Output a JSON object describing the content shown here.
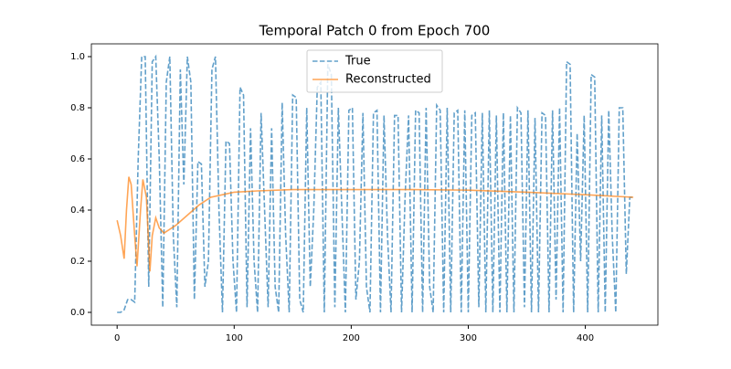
{
  "chart_data": {
    "type": "line",
    "title": "Temporal Patch 0 from Epoch 700",
    "xlim": [
      -22,
      462
    ],
    "ylim": [
      -0.05,
      1.05
    ],
    "xticks": [
      0,
      100,
      200,
      300,
      400
    ],
    "yticks": [
      {
        "value": 0,
        "label": "0.0"
      },
      0.2,
      0.4,
      0.6,
      0.8,
      {
        "value": 1,
        "label": "1.0"
      }
    ],
    "legend": "upper center",
    "grid": false,
    "series": [
      {
        "name": "True",
        "color": "#1f77b4",
        "dashed": true,
        "x": [
          0,
          3,
          6,
          9,
          12,
          15,
          18,
          21,
          24,
          27,
          30,
          33,
          36,
          39,
          42,
          45,
          48,
          51,
          54,
          57,
          60,
          63,
          66,
          69,
          72,
          75,
          78,
          81,
          84,
          87,
          90,
          93,
          96,
          99,
          102,
          105,
          108,
          111,
          114,
          117,
          120,
          123,
          126,
          129,
          132,
          135,
          138,
          141,
          144,
          147,
          150,
          153,
          156,
          159,
          162,
          165,
          168,
          171,
          174,
          177,
          180,
          183,
          186,
          189,
          192,
          195,
          198,
          201,
          204,
          207,
          210,
          213,
          216,
          219,
          222,
          225,
          228,
          231,
          234,
          237,
          240,
          243,
          246,
          249,
          252,
          255,
          258,
          261,
          264,
          267,
          270,
          273,
          276,
          279,
          282,
          285,
          288,
          291,
          294,
          297,
          300,
          303,
          306,
          309,
          312,
          315,
          318,
          321,
          324,
          327,
          330,
          333,
          336,
          339,
          342,
          345,
          348,
          351,
          354,
          357,
          360,
          363,
          366,
          369,
          372,
          375,
          378,
          381,
          384,
          387,
          390,
          393,
          396,
          399,
          402,
          405,
          408,
          411,
          414,
          417,
          420,
          423,
          426,
          429,
          432,
          435,
          438,
          441
        ],
        "values": [
          0,
          0,
          0.01,
          0.05,
          0.05,
          0.04,
          0.6,
          1.0,
          1.0,
          0.1,
          0.98,
          1.0,
          0.6,
          0.02,
          0.9,
          1.0,
          0.3,
          0.02,
          0.95,
          0.5,
          1.0,
          0.9,
          0.05,
          0.59,
          0.58,
          0.1,
          0.2,
          0.95,
          1.0,
          0.4,
          0.0,
          0.67,
          0.66,
          0.2,
          0.0,
          0.88,
          0.85,
          0.02,
          0.72,
          0.2,
          0.0,
          0.78,
          0.4,
          0.02,
          0.72,
          0.1,
          0.0,
          0.82,
          0.3,
          0.0,
          0.85,
          0.84,
          0.05,
          0.0,
          0.8,
          0.1,
          0.4,
          0.88,
          0.9,
          0.0,
          0.97,
          0.93,
          0.02,
          0.8,
          0.4,
          0.0,
          0.79,
          0.8,
          0.05,
          0.2,
          0.78,
          0.1,
          0.0,
          0.78,
          0.79,
          0.0,
          0.77,
          0.3,
          0.0,
          0.77,
          0.77,
          0.0,
          0.45,
          0.77,
          0.0,
          0.79,
          0.78,
          0.0,
          0.8,
          0.1,
          0.0,
          0.81,
          0.79,
          0.0,
          0.8,
          0.0,
          0.78,
          0.79,
          0.0,
          0.79,
          0.0,
          0.77,
          0.78,
          0.02,
          0.78,
          0.0,
          0.79,
          0.0,
          0.77,
          0.0,
          0.78,
          0.0,
          0.77,
          0.0,
          0.8,
          0.78,
          0.02,
          0.79,
          0.0,
          0.76,
          0.0,
          0.78,
          0.77,
          0.0,
          0.79,
          0.05,
          0.8,
          0.0,
          0.98,
          0.97,
          0.0,
          0.7,
          0.2,
          0.77,
          0.0,
          0.93,
          0.92,
          0.0,
          0.77,
          0.0,
          0.79,
          0.3,
          0.0,
          0.8,
          0.8,
          0.15,
          0.45,
          0.45
        ]
      },
      {
        "name": "Reconstructed",
        "color": "#ff7f0e",
        "dashed": false,
        "x": [
          0,
          3,
          6,
          8,
          10,
          12,
          15,
          17,
          20,
          22,
          25,
          28,
          30,
          33,
          36,
          40,
          50,
          60,
          70,
          80,
          90,
          100,
          120,
          150,
          200,
          250,
          300,
          350,
          400,
          441
        ],
        "values": [
          0.36,
          0.3,
          0.21,
          0.4,
          0.53,
          0.5,
          0.3,
          0.18,
          0.4,
          0.52,
          0.45,
          0.16,
          0.3,
          0.37,
          0.33,
          0.31,
          0.34,
          0.38,
          0.42,
          0.45,
          0.46,
          0.47,
          0.475,
          0.48,
          0.48,
          0.48,
          0.478,
          0.47,
          0.46,
          0.45
        ]
      }
    ]
  }
}
